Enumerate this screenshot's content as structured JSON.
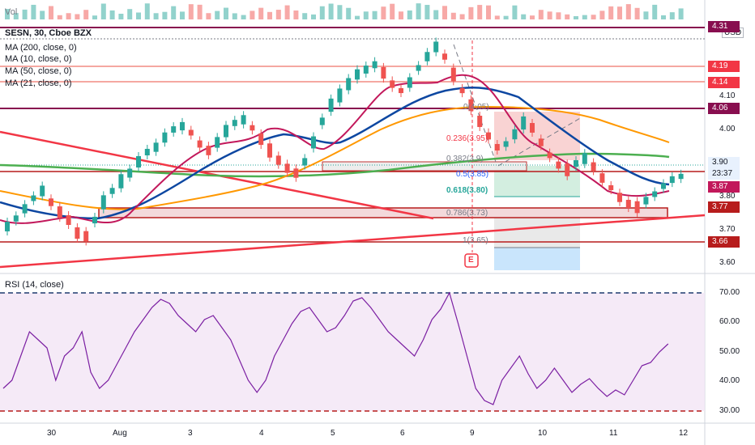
{
  "volume": {
    "label": "Vol"
  },
  "header": {
    "symbol": "SESN, 30, Cboe BZX",
    "ma_lines": [
      "MA (200, close, 0)",
      "MA (10, close, 0)",
      "MA (50, close, 0)",
      "MA (21, close, 0)"
    ]
  },
  "price_axis": {
    "currency": "USD",
    "ticks": [
      "4.10",
      "4.00",
      "3.80",
      "3.70",
      "3.60"
    ],
    "tags": [
      {
        "text": "4.31",
        "color": "#880e4f"
      },
      {
        "text": "4.19",
        "color": "#f23645"
      },
      {
        "text": "4.14",
        "color": "#f23645"
      },
      {
        "text": "4.06",
        "color": "#880e4f"
      },
      {
        "text": "3.90",
        "color": "#e8f1fd"
      },
      {
        "text": "23:37",
        "color": "#e8f1fd"
      },
      {
        "text": "3.87",
        "color": "#c2185b"
      },
      {
        "text": "3.77",
        "color": "#b71c1c"
      },
      {
        "text": "3.66",
        "color": "#b71c1c"
      }
    ]
  },
  "fib": {
    "labels": [
      "0(4.05)",
      "0.236(3.95)",
      "0.382(3.9)",
      "0.5(3.85)",
      "0.618(3.80)",
      "0.786(3.73)",
      "1(3.65)"
    ],
    "earnings_marker": "E"
  },
  "rsi": {
    "title": "RSI (14, close)",
    "ticks": [
      "70.00",
      "60.00",
      "50.00",
      "40.00",
      "30.00"
    ]
  },
  "time_axis": {
    "ticks": [
      "30",
      "Aug",
      "3",
      "4",
      "5",
      "6",
      "9",
      "10",
      "11",
      "12"
    ]
  },
  "colors": {
    "up": "#26a69a",
    "down": "#ef5350",
    "ma200": "#4caf50",
    "ma10": "#c2185b",
    "ma50": "#ff9800",
    "ma21": "#0d47a1",
    "rsi_line": "#7b1fa2",
    "rsi_bg": "#f3e5f5"
  }
}
